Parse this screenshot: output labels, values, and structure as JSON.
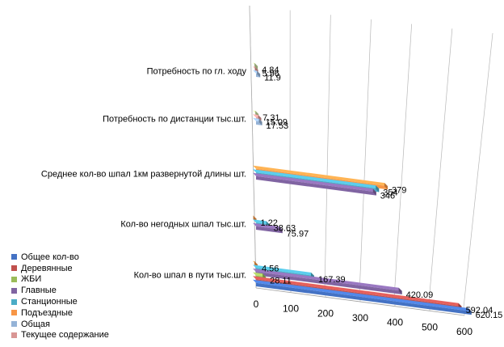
{
  "chart_data": {
    "type": "bar",
    "orientation": "horizontal",
    "three_d": true,
    "grid": true,
    "legend_position": "bottom-left",
    "title": "",
    "xlabel": "",
    "ylabel": "",
    "xlim": [
      0,
      600
    ],
    "x_ticks": [
      "0",
      "100",
      "200",
      "300",
      "400",
      "500",
      "600"
    ],
    "categories": [
      "Кол-во шпал в пути тыс.шт.",
      "Кол-во негодных шпал тыс.шт.",
      "Среднее кол-во шпал 1км развернутой длины шт.",
      "Потребность по дистанции тыс.шт.",
      "Потребность по гл. ходу"
    ],
    "series": [
      {
        "name": "Общее кол-во",
        "color": "#4472C4",
        "values": [
          620.15,
          null,
          null,
          null,
          null
        ],
        "labels": [
          "620.15",
          "",
          "",
          "",
          ""
        ]
      },
      {
        "name": "Деревянные",
        "color": "#C0504D",
        "values": [
          592.04,
          null,
          null,
          null,
          null
        ],
        "labels": [
          "592.04",
          "",
          "",
          "",
          ""
        ]
      },
      {
        "name": "ЖБИ",
        "color": "#9BBB59",
        "values": [
          28.11,
          null,
          null,
          null,
          null
        ],
        "labels": [
          "28.11",
          "",
          "",
          "",
          ""
        ]
      },
      {
        "name": "Главные",
        "color": "#8064A2",
        "values": [
          420.09,
          75.97,
          346,
          null,
          null
        ],
        "labels": [
          "420.09",
          "75.97",
          "346",
          "",
          ""
        ]
      },
      {
        "name": "Станционные",
        "color": "#4BACC6",
        "values": [
          167.39,
          38.63,
          354,
          null,
          null
        ],
        "labels": [
          "167.39",
          "38.63",
          "354",
          "",
          ""
        ]
      },
      {
        "name": "Подъездные",
        "color": "#F79646",
        "values": [
          4.56,
          1.22,
          379,
          null,
          null
        ],
        "labels": [
          "4.56",
          "1.22",
          "379",
          "",
          ""
        ]
      },
      {
        "name": "Общая",
        "color": "#95B3D7",
        "values": [
          null,
          null,
          null,
          17.53,
          11.9
        ],
        "labels": [
          "",
          "",
          "",
          "17.53",
          "11.9"
        ]
      },
      {
        "name": "Текущее содержание",
        "color": "#D99694",
        "values": [
          null,
          null,
          null,
          15.09,
          5.96
        ],
        "labels": [
          "",
          "",
          "",
          "15.09",
          "5.96"
        ]
      },
      {
        "name": "",
        "color": "#C3D69B",
        "values": [
          null,
          null,
          null,
          7.31,
          4.84
        ],
        "labels": [
          "",
          "",
          "",
          "7.31",
          "4.84"
        ]
      }
    ]
  }
}
